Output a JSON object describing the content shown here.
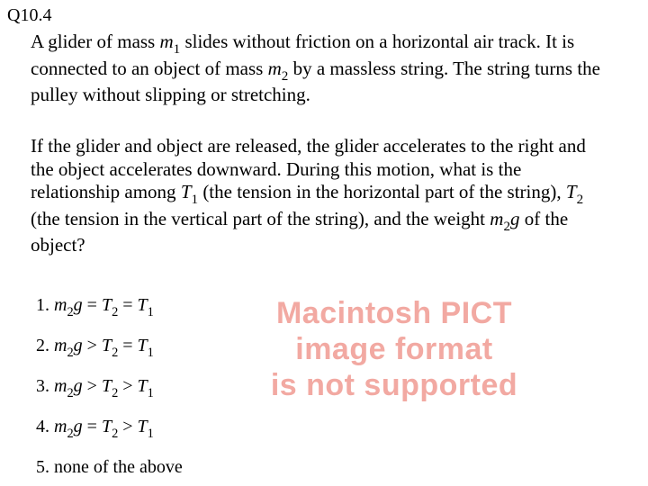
{
  "qnum": "Q10.4",
  "para1_pre": "A glider of mass ",
  "m": "m",
  "one": "1",
  "para1_mid": " slides without friction on a horizontal air track. It is connected to an object of mass ",
  "two": "2",
  "para1_post": " by a massless string. The string turns the pulley without slipping or stretching.",
  "para2_a": "If the glider and object are released, the glider accelerates to the right and the object accelerates downward. During this motion, what is the relationship among ",
  "T": "T",
  "para2_b": " (the tension in the horizontal part of the string), ",
  "para2_c": " (the tension in the vertical part of the string), and the weight ",
  "g": "g",
  "para2_d": " of the object?",
  "opts": {
    "n1": "1. ",
    "n2": "2. ",
    "n3": "3. ",
    "n4": "4. ",
    "n5": "5. none of the above",
    "eq": " = ",
    "gt": " > "
  },
  "pict": {
    "l1": "Macintosh PICT",
    "l2": "image format",
    "l3": "is not supported"
  },
  "colors": {
    "text": "#000000",
    "pict": "#f2a9a2",
    "bg": "#ffffff"
  }
}
